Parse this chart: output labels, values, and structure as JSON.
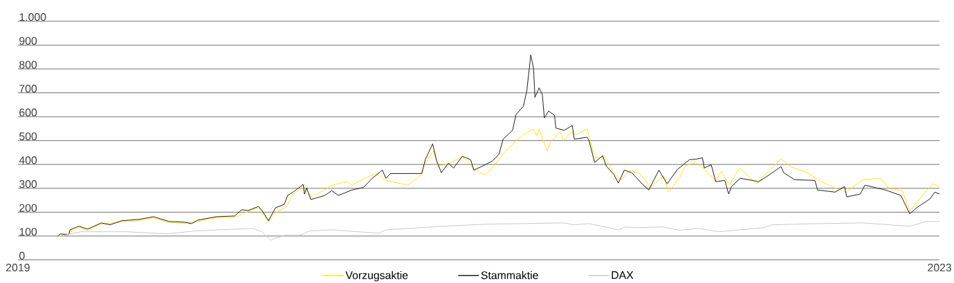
{
  "chart_data": {
    "type": "line",
    "xlim": [
      2019,
      2023
    ],
    "xticks": [
      2019,
      2023
    ],
    "ylim": [
      0,
      1000
    ],
    "yticks": [
      0,
      100,
      200,
      300,
      400,
      500,
      600,
      700,
      800,
      900,
      {
        "value": 1000,
        "label": "1.000"
      }
    ],
    "grid": "y",
    "legend": "bottom",
    "series": [
      {
        "name": "Vorzugsaktie",
        "color": "#ffe600",
        "x": [
          2019.171,
          2019.226,
          2019.265,
          2019.303,
          2019.362,
          2019.45,
          2019.529,
          2019.588,
          2019.656,
          2019.724,
          2019.782,
          2019.862,
          2019.941,
          2020.0,
          2020.044,
          2020.088,
          2020.118,
          2020.165,
          2020.194,
          2020.244,
          2020.274,
          2020.332,
          2020.362,
          2020.429,
          2020.45,
          2020.518,
          2020.559,
          2020.597,
          2020.694,
          2020.744,
          2020.765,
          2020.803,
          2020.824,
          2020.862,
          2020.929,
          2020.979,
          2021.029,
          2021.059,
          2021.106,
          2021.156,
          2021.194,
          2021.235,
          2021.253,
          2021.262,
          2021.297,
          2021.312,
          2021.353,
          2021.368,
          2021.4,
          2021.421,
          2021.471,
          2021.494,
          2021.509,
          2021.547,
          2021.588,
          2021.618,
          2021.656,
          2021.7,
          2021.744,
          2021.803,
          2021.824,
          2021.871,
          2021.897,
          2021.941,
          2021.979,
          2022.029,
          2022.053,
          2022.088,
          2022.132,
          2022.206,
          2022.265,
          2022.312,
          2022.353,
          2022.429,
          2022.471,
          2022.538,
          2022.597,
          2022.665,
          2022.744,
          2022.782,
          2022.838,
          2022.871,
          2022.921,
          2022.971,
          2023.0
        ],
        "values": [
          98,
          115,
          135,
          124,
          150,
          158,
          165,
          175,
          156,
          153,
          162,
          176,
          178,
          203,
          219,
          160,
          198,
          221,
          276,
          305,
          264,
          293,
          313,
          328,
          313,
          348,
          362,
          333,
          313,
          351,
          399,
          457,
          394,
          399,
          434,
          379,
          356,
          385,
          443,
          494,
          523,
          549,
          520,
          549,
          457,
          494,
          537,
          500,
          534,
          523,
          549,
          466,
          428,
          428,
          362,
          336,
          376,
          362,
          305,
          351,
          284,
          342,
          394,
          408,
          379,
          333,
          371,
          313,
          385,
          319,
          376,
          425,
          391,
          365,
          336,
          305,
          284,
          336,
          342,
          299,
          290,
          204,
          264,
          319,
          307
        ]
      },
      {
        "name": "Stammaktie",
        "color": "#1a1a1a",
        "x": [
          2019.171,
          2019.185,
          2019.221,
          2019.226,
          2019.265,
          2019.303,
          2019.362,
          2019.4,
          2019.45,
          2019.529,
          2019.588,
          2019.656,
          2019.724,
          2019.753,
          2019.782,
          2019.862,
          2019.941,
          2019.971,
          2020.0,
          2020.044,
          2020.059,
          2020.088,
          2020.118,
          2020.156,
          2020.171,
          2020.194,
          2020.238,
          2020.244,
          2020.253,
          2020.271,
          2020.294,
          2020.332,
          2020.362,
          2020.391,
          2020.45,
          2020.5,
          2020.538,
          2020.582,
          2020.597,
          2020.618,
          2020.676,
          2020.753,
          2020.768,
          2020.8,
          2020.818,
          2020.838,
          2020.868,
          2020.891,
          2020.929,
          2020.965,
          2020.979,
          2021.018,
          2021.059,
          2021.088,
          2021.106,
          2021.147,
          2021.162,
          2021.194,
          2021.209,
          2021.226,
          2021.238,
          2021.244,
          2021.262,
          2021.276,
          2021.285,
          2021.303,
          2021.329,
          2021.335,
          2021.371,
          2021.406,
          2021.415,
          2021.471,
          2021.479,
          2021.503,
          2021.538,
          2021.553,
          2021.588,
          2021.606,
          2021.632,
          2021.665,
          2021.709,
          2021.738,
          2021.782,
          2021.818,
          2021.862,
          2021.915,
          2021.944,
          2021.971,
          2021.979,
          2022.009,
          2022.029,
          2022.068,
          2022.085,
          2022.097,
          2022.135,
          2022.215,
          2022.253,
          2022.312,
          2022.324,
          2022.371,
          2022.459,
          2022.471,
          2022.547,
          2022.588,
          2022.597,
          2022.656,
          2022.676,
          2022.765,
          2022.832,
          2022.871,
          2022.9,
          2022.959,
          2022.979,
          2023.0
        ],
        "values": [
          98,
          109,
          106,
          126,
          141,
          129,
          155,
          147,
          164,
          170,
          181,
          161,
          158,
          152,
          167,
          181,
          184,
          210,
          207,
          224,
          207,
          164,
          218,
          233,
          270,
          284,
          316,
          276,
          302,
          253,
          259,
          270,
          290,
          270,
          293,
          304,
          342,
          376,
          342,
          362,
          362,
          362,
          420,
          486,
          414,
          365,
          405,
          385,
          434,
          420,
          376,
          394,
          414,
          443,
          506,
          543,
          609,
          644,
          710,
          859,
          802,
          681,
          721,
          693,
          595,
          624,
          606,
          552,
          543,
          563,
          506,
          514,
          500,
          408,
          437,
          394,
          356,
          322,
          376,
          365,
          319,
          293,
          376,
          319,
          379,
          420,
          422,
          428,
          385,
          399,
          328,
          333,
          276,
          307,
          342,
          328,
          351,
          391,
          365,
          336,
          333,
          293,
          284,
          307,
          264,
          276,
          313,
          293,
          270,
          193,
          218,
          256,
          284,
          276
        ]
      },
      {
        "name": "DAX",
        "color": "#c8c8c8",
        "x": [
          2019.171,
          2019.274,
          2019.471,
          2019.647,
          2019.765,
          2020.018,
          2020.059,
          2020.097,
          2020.156,
          2020.224,
          2020.265,
          2020.359,
          2020.568,
          2020.597,
          2020.841,
          2021.018,
          2021.176,
          2021.371,
          2021.412,
          2021.479,
          2021.606,
          2021.635,
          2021.685,
          2021.803,
          2021.871,
          2021.95,
          2022.047,
          2022.235,
          2022.274,
          2022.471,
          2022.665,
          2022.871,
          2022.941,
          2023.0
        ],
        "values": [
          98,
          118,
          118,
          109,
          121,
          132,
          118,
          83,
          103,
          103,
          121,
          126,
          112,
          126,
          141,
          149,
          152,
          155,
          147,
          152,
          126,
          138,
          135,
          138,
          124,
          132,
          118,
          135,
          147,
          152,
          155,
          141,
          161,
          161
        ]
      }
    ]
  }
}
